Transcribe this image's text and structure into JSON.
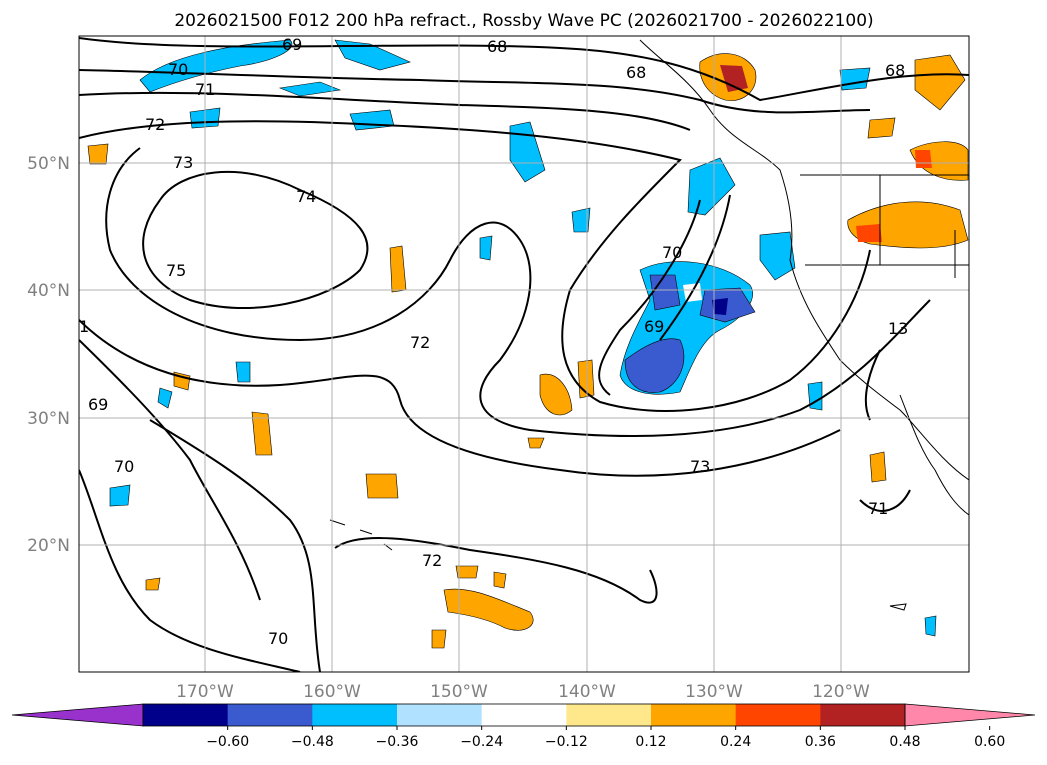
{
  "title": "2026021500 F012 200 hPa refract., Rossby Wave PC (2026021700 - 2026022100)",
  "lat_labels": [
    "50°N",
    "40°N",
    "30°N",
    "20°N"
  ],
  "lon_labels": [
    "170°W",
    "160°W",
    "150°W",
    "140°W",
    "130°W",
    "120°W"
  ],
  "contour_labels": [
    "69",
    "68",
    "70",
    "71",
    "72",
    "73",
    "74",
    "75",
    "68",
    "68",
    "70",
    "69",
    "72",
    "73",
    "13",
    "69",
    "70",
    "72",
    "70",
    "71",
    "1"
  ],
  "colorbar": {
    "ticks": [
      "−0.60",
      "−0.48",
      "−0.36",
      "−0.24",
      "−0.12",
      "0.12",
      "0.24",
      "0.36",
      "0.48",
      "0.60"
    ],
    "colors": [
      "#9932cc",
      "#00008b",
      "#3a5bcf",
      "#00bfff",
      "#b0e2ff",
      "#ffffff",
      "#ffe88c",
      "#ffa500",
      "#ff4500",
      "#b22222",
      "#ff88aa"
    ]
  }
}
